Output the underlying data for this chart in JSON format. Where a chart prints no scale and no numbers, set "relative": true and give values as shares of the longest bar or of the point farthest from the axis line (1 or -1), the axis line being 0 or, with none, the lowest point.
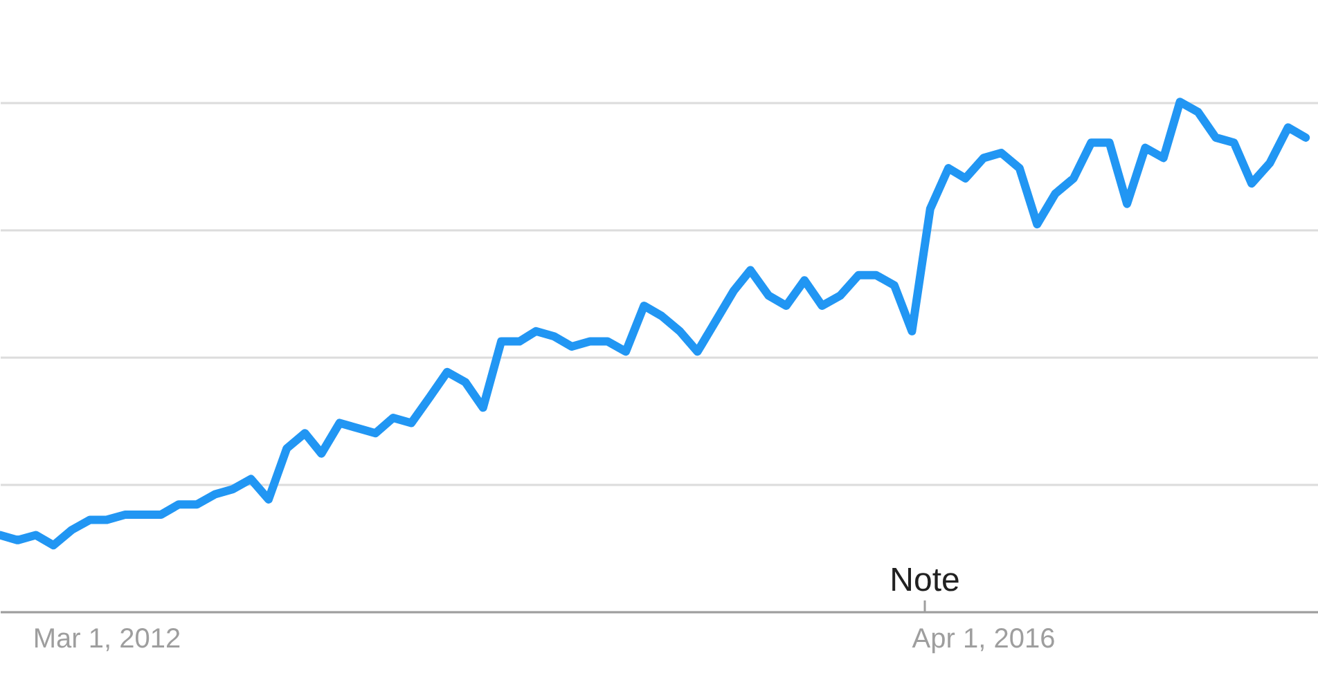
{
  "chart_data": {
    "type": "line",
    "relative": true,
    "grid": "y",
    "marker": "none",
    "line_style": "solid",
    "x": [
      "2011-09",
      "2011-10",
      "2011-11",
      "2011-12",
      "2012-01",
      "2012-02",
      "2012-03",
      "2012-04",
      "2012-05",
      "2012-06",
      "2012-07",
      "2012-08",
      "2012-09",
      "2012-10",
      "2012-11",
      "2012-12",
      "2013-01",
      "2013-02",
      "2013-03",
      "2013-04",
      "2013-05",
      "2013-06",
      "2013-07",
      "2013-08",
      "2013-09",
      "2013-10",
      "2013-11",
      "2013-12",
      "2014-01",
      "2014-02",
      "2014-03",
      "2014-04",
      "2014-05",
      "2014-06",
      "2014-07",
      "2014-08",
      "2014-09",
      "2014-10",
      "2014-11",
      "2014-12",
      "2015-01",
      "2015-02",
      "2015-03",
      "2015-04",
      "2015-05",
      "2015-06",
      "2015-07",
      "2015-08",
      "2015-09",
      "2015-10",
      "2015-11",
      "2015-12",
      "2016-01",
      "2016-02",
      "2016-03",
      "2016-04",
      "2016-05",
      "2016-06",
      "2016-07",
      "2016-08",
      "2016-09",
      "2016-10",
      "2016-11",
      "2016-12",
      "2017-01",
      "2017-02",
      "2017-03",
      "2017-04",
      "2017-05",
      "2017-06",
      "2017-07",
      "2017-08",
      "2017-09",
      "2017-10"
    ],
    "xlim": [
      "2011-09-01",
      "2017-10-22"
    ],
    "xticks": [
      {
        "value": "2012-03-01",
        "label": "Mar 1, 2012"
      },
      {
        "value": "2016-04-01",
        "label": "Apr 1, 2016"
      }
    ],
    "series": [
      {
        "color": "#2196f3",
        "values": [
          0.15,
          0.14,
          0.15,
          0.13,
          0.16,
          0.18,
          0.18,
          0.19,
          0.19,
          0.19,
          0.21,
          0.21,
          0.23,
          0.24,
          0.26,
          0.22,
          0.32,
          0.35,
          0.31,
          0.37,
          0.36,
          0.35,
          0.38,
          0.37,
          0.42,
          0.47,
          0.45,
          0.4,
          0.53,
          0.53,
          0.55,
          0.54,
          0.52,
          0.53,
          0.53,
          0.51,
          0.6,
          0.58,
          0.55,
          0.51,
          0.57,
          0.63,
          0.67,
          0.62,
          0.6,
          0.65,
          0.6,
          0.62,
          0.66,
          0.66,
          0.64,
          0.55,
          0.79,
          0.87,
          0.85,
          0.89,
          0.9,
          0.87,
          0.76,
          0.82,
          0.85,
          0.92,
          0.92,
          0.8,
          0.91,
          0.89,
          1.0,
          0.98,
          0.93,
          0.92,
          0.84,
          0.88,
          0.95,
          0.93
        ]
      }
    ],
    "annotations": [
      "Note"
    ]
  }
}
